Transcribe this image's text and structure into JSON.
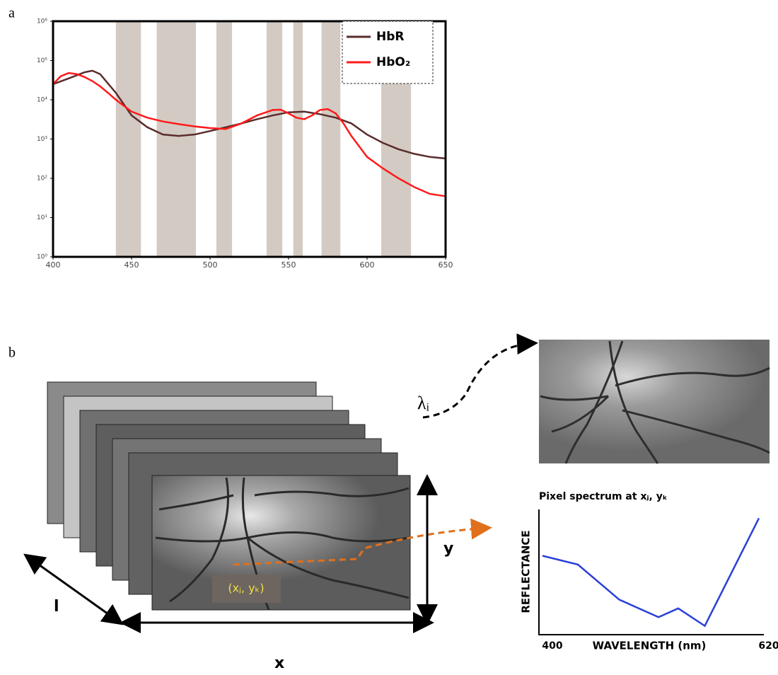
{
  "panel_labels": [
    "a",
    "b"
  ],
  "chart_data": [
    {
      "type": "line",
      "log_y": true,
      "grid": false,
      "legend": "upper right",
      "band_color": "#d3cbc3",
      "xlim": [
        400,
        650
      ],
      "xticks": [
        400,
        450,
        500,
        550,
        600,
        650
      ],
      "ylim": [
        1,
        1000000
      ],
      "yticks": [
        {
          "value": 1,
          "label": "10⁰"
        },
        {
          "value": 10,
          "label": "10¹"
        },
        {
          "value": 100,
          "label": "10²"
        },
        {
          "value": 1000,
          "label": "10³"
        },
        {
          "value": 10000,
          "label": "10⁴"
        },
        {
          "value": 100000,
          "label": "10⁵"
        },
        {
          "value": 1000000,
          "label": "10⁶"
        }
      ],
      "bands": [
        [
          440,
          456
        ],
        [
          466,
          491
        ],
        [
          504,
          514
        ],
        [
          536,
          546
        ],
        [
          553,
          559
        ],
        [
          571,
          583
        ],
        [
          609,
          628
        ]
      ],
      "series": [
        {
          "name": "HbR",
          "color": "#5a2c2c",
          "x": [
            400,
            410,
            420,
            425,
            430,
            440,
            450,
            460,
            470,
            480,
            490,
            500,
            510,
            520,
            530,
            540,
            550,
            560,
            570,
            580,
            590,
            600,
            610,
            620,
            630,
            640,
            650
          ],
          "values": [
            25000,
            35000,
            50000,
            55000,
            45000,
            15000,
            4000,
            2000,
            1300,
            1200,
            1300,
            1600,
            2000,
            2500,
            3200,
            4000,
            4800,
            5000,
            4300,
            3500,
            2500,
            1300,
            800,
            550,
            420,
            350,
            320
          ]
        },
        {
          "name": "HbO₂",
          "color": "#ff1a1a",
          "x": [
            400,
            405,
            410,
            415,
            420,
            425,
            430,
            435,
            440,
            450,
            460,
            470,
            480,
            490,
            500,
            510,
            520,
            530,
            540,
            545,
            550,
            555,
            560,
            565,
            570,
            575,
            580,
            585,
            590,
            600,
            610,
            620,
            630,
            640,
            650
          ],
          "values": [
            25000,
            40000,
            48000,
            45000,
            38000,
            30000,
            22000,
            15000,
            10000,
            5000,
            3500,
            2800,
            2400,
            2100,
            1900,
            1800,
            2500,
            4000,
            5500,
            5600,
            4500,
            3500,
            3200,
            4000,
            5500,
            5800,
            4500,
            2500,
            1200,
            350,
            180,
            100,
            60,
            40,
            35
          ]
        }
      ]
    },
    {
      "type": "line",
      "title": "Pixel spectrum at xⱼ, yₖ",
      "x_label": "WAVELENGTH (nm)",
      "y_label": "REFLECTANCE",
      "xlim": [
        400,
        620
      ],
      "xticks": [
        400,
        620
      ],
      "ylim": [
        0,
        100
      ],
      "series": [
        {
          "color": "#2a3fd6",
          "x": [
            400,
            436,
            478,
            518,
            538,
            565,
            620
          ],
          "values": [
            63,
            56,
            28,
            14,
            21,
            7,
            93
          ]
        }
      ]
    }
  ],
  "diagram": {
    "wavelength_label": "λᵢ",
    "pixel_label": "(xⱼ, yₖ)",
    "axis_labels": {
      "x": "x",
      "y": "y",
      "l": "l"
    }
  }
}
